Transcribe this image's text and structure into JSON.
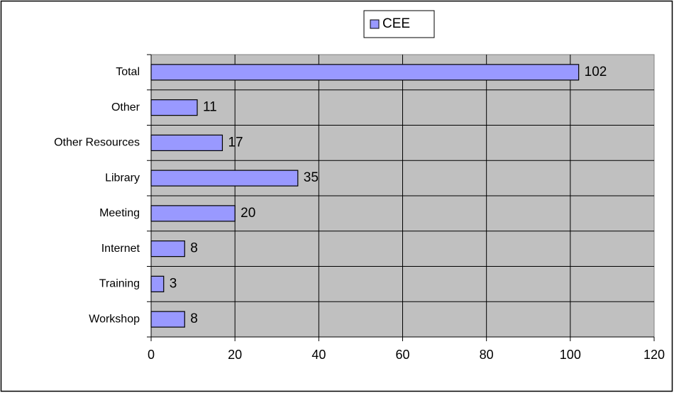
{
  "chart_data": {
    "type": "bar",
    "orientation": "horizontal",
    "categories": [
      "Total",
      "Other",
      "Other Resources",
      "Library",
      "Meeting",
      "Internet",
      "Training",
      "Workshop"
    ],
    "series": [
      {
        "name": "CEE",
        "color": "#9999ff",
        "values": [
          102,
          11,
          17,
          35,
          20,
          8,
          3,
          8
        ]
      }
    ],
    "xlim": [
      0,
      120
    ],
    "xticks": [
      0,
      20,
      40,
      60,
      80,
      100,
      120
    ],
    "grid": true,
    "legend": "top",
    "plot_background": "#c0c0c0"
  }
}
